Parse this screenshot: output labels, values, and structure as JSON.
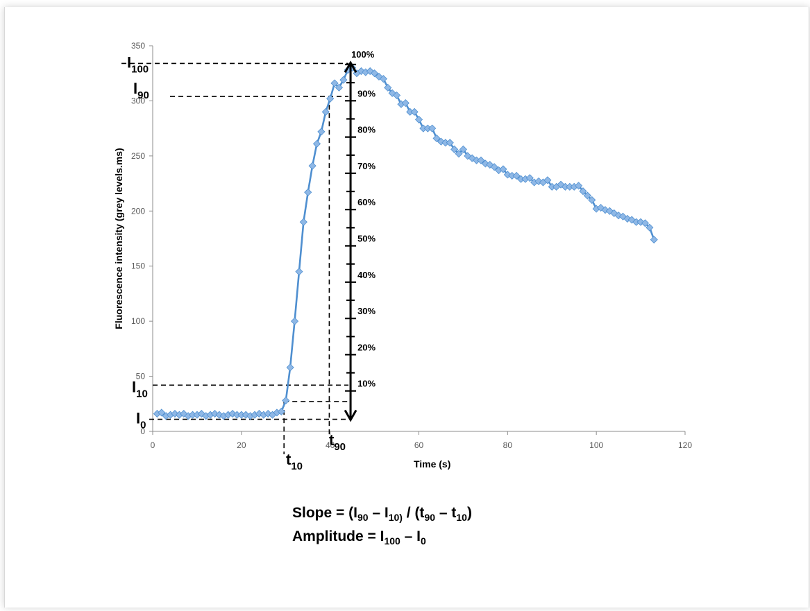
{
  "chart_data": {
    "type": "line",
    "xlabel": "Time (s)",
    "ylabel": "Fluorescence intensity (grey levels.ms)",
    "xlim": [
      0,
      120
    ],
    "ylim": [
      0,
      350
    ],
    "xticks": [
      0,
      20,
      40,
      60,
      80,
      100,
      120
    ],
    "yticks": [
      0,
      50,
      100,
      150,
      200,
      250,
      300,
      350
    ],
    "line_color": "#4f8fd0",
    "marker_color": "#8fb8e6",
    "series": [
      {
        "x": [
          1,
          2,
          3,
          4,
          5,
          6,
          7,
          8,
          9,
          10,
          11,
          12,
          13,
          14,
          15,
          16,
          17,
          18,
          19,
          20,
          21,
          22,
          23,
          24,
          25,
          26,
          27,
          28,
          29,
          30,
          31,
          32,
          33,
          34,
          35,
          36,
          37,
          38,
          39,
          40,
          41,
          42,
          43,
          44,
          45,
          46,
          47,
          48,
          49,
          50,
          51,
          52,
          53,
          54,
          55,
          56,
          57,
          58,
          59,
          60,
          61,
          62,
          63,
          64,
          65,
          66,
          67,
          68,
          69,
          70,
          71,
          72,
          73,
          74,
          75,
          76,
          77,
          78,
          79,
          80,
          81,
          82,
          83,
          84,
          85,
          86,
          87,
          88,
          89,
          90,
          91,
          92,
          93,
          94,
          95,
          96,
          97,
          98,
          99,
          100,
          101,
          102,
          103,
          104,
          105,
          106,
          107,
          108,
          109,
          110,
          111,
          112,
          113
        ],
        "y": [
          16,
          17,
          14,
          15,
          16,
          15,
          16,
          14,
          15,
          15,
          16,
          14,
          15,
          16,
          15,
          14,
          15,
          16,
          15,
          15,
          15,
          14,
          15,
          16,
          15,
          16,
          15,
          17,
          18,
          28,
          58,
          100,
          145,
          190,
          217,
          241,
          261,
          272,
          290,
          302,
          316,
          312,
          319,
          328,
          330,
          325,
          327,
          326,
          327,
          325,
          322,
          320,
          312,
          307,
          305,
          297,
          298,
          290,
          290,
          283,
          275,
          275,
          275,
          266,
          263,
          262,
          262,
          256,
          252,
          256,
          250,
          248,
          246,
          246,
          243,
          242,
          240,
          237,
          238,
          233,
          232,
          232,
          229,
          229,
          230,
          226,
          227,
          226,
          228,
          222,
          222,
          224,
          222,
          222,
          222,
          223,
          218,
          214,
          210,
          202,
          203,
          201,
          200,
          198,
          196,
          195,
          193,
          192,
          190,
          190,
          189,
          185,
          174
        ]
      }
    ],
    "annotations": {
      "I100": {
        "label": "I",
        "sub": "100",
        "value": 334
      },
      "I90": {
        "label": "I",
        "sub": "90",
        "value": 304
      },
      "I10": {
        "label": "I",
        "sub": "10",
        "value": 42
      },
      "I0": {
        "label": "I",
        "sub": "0",
        "value": 11
      },
      "t10": {
        "label": "t",
        "sub": "10",
        "value": 29.6
      },
      "t90": {
        "label": "t",
        "sub": "90",
        "value": 39.8
      },
      "t10_level": 27,
      "arrow_x": 44.6,
      "percent_labels": [
        "100%",
        "90%",
        "80%",
        "70%",
        "60%",
        "50%",
        "40%",
        "30%",
        "20%",
        "10%"
      ]
    }
  },
  "formula": {
    "slope": {
      "a": "Slope = (I",
      "b": "90",
      "c": " – I",
      "d": "10)",
      "e": " / (t",
      "f": "90",
      "g": " – t",
      "h": "10",
      "i": ")"
    },
    "amplitude": {
      "a": "Amplitude = I",
      "b": "100",
      "c": " – I",
      "d": "0"
    }
  }
}
